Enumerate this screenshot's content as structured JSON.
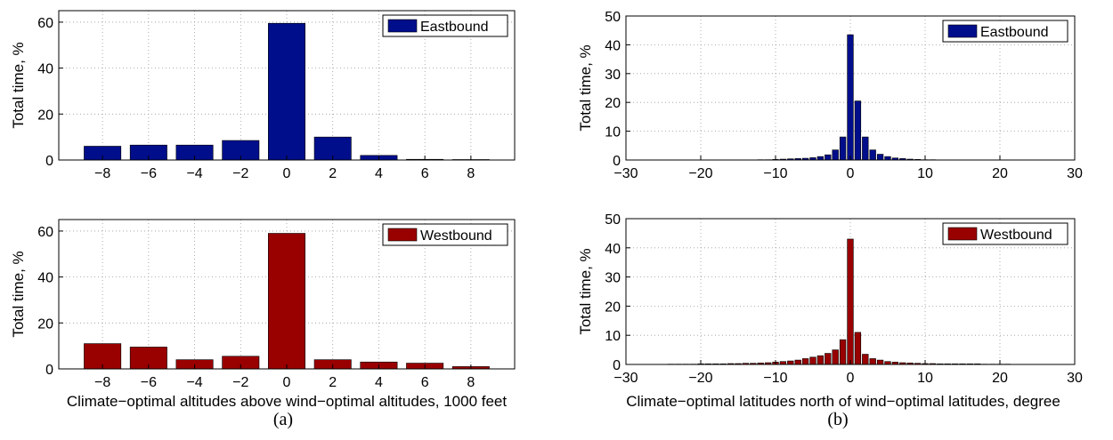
{
  "captions": [
    "(a)",
    "(b)"
  ],
  "chart_data": [
    {
      "type": "bar",
      "panel": "a",
      "x": [
        -8,
        -6,
        -4,
        -2,
        0,
        2,
        4,
        6,
        8
      ],
      "series": [
        {
          "name": "Eastbound",
          "values": [
            6,
            6.5,
            6.5,
            8.5,
            59.5,
            10,
            2,
            0.3,
            0.2
          ]
        }
      ],
      "color": "#000e8c",
      "xlim": [
        -9.9,
        9.9
      ],
      "ylim": [
        0,
        65
      ],
      "xticks": [
        -8,
        -6,
        -4,
        -2,
        0,
        2,
        4,
        6,
        8
      ],
      "yticks": [
        0,
        20,
        40,
        60
      ],
      "ylabel": "Total time, %",
      "xlabel": "",
      "grid": true,
      "legend": "top-right"
    },
    {
      "type": "bar",
      "panel": "a",
      "x": [
        -8,
        -6,
        -4,
        -2,
        0,
        2,
        4,
        6,
        8
      ],
      "series": [
        {
          "name": "Westbound",
          "values": [
            11,
            9.5,
            4,
            5.5,
            59,
            4,
            3,
            2.5,
            1
          ]
        }
      ],
      "color": "#990000",
      "xlim": [
        -9.9,
        9.9
      ],
      "ylim": [
        0,
        65
      ],
      "xticks": [
        -8,
        -6,
        -4,
        -2,
        0,
        2,
        4,
        6,
        8
      ],
      "yticks": [
        0,
        20,
        40,
        60
      ],
      "ylabel": "Total time, %",
      "xlabel": "Climate−optimal altitudes above wind−optimal altitudes, 1000 feet",
      "grid": true,
      "legend": "top-right"
    },
    {
      "type": "bar",
      "panel": "b",
      "x": [
        -24,
        -23,
        -22,
        -21,
        -20,
        -19,
        -18,
        -17,
        -16,
        -15,
        -14,
        -13,
        -12,
        -11,
        -10,
        -9,
        -8,
        -7,
        -6,
        -5,
        -4,
        -3,
        -2,
        -1,
        0,
        1,
        2,
        3,
        4,
        5,
        6,
        7,
        8,
        9,
        10,
        11,
        12,
        13,
        14,
        15,
        16,
        17,
        18,
        19,
        20,
        21
      ],
      "series": [
        {
          "name": "Eastbound",
          "values": [
            0.05,
            0.05,
            0.05,
            0.05,
            0.05,
            0.05,
            0.05,
            0.05,
            0.05,
            0.05,
            0.05,
            0.05,
            0.1,
            0.1,
            0.2,
            0.3,
            0.4,
            0.5,
            0.6,
            0.8,
            1.2,
            1.8,
            3.5,
            8,
            43.5,
            20.5,
            8,
            3.5,
            2,
            1.2,
            0.7,
            0.5,
            0.3,
            0.2,
            0.1,
            0.1,
            0.05,
            0.05,
            0.05,
            0.05,
            0.05,
            0.05,
            0.05,
            0.05,
            0.05,
            0.05
          ]
        }
      ],
      "color": "#000e8c",
      "xlim": [
        -30,
        30
      ],
      "ylim": [
        0,
        50
      ],
      "xticks": [
        -30,
        -20,
        -10,
        0,
        10,
        20,
        30
      ],
      "yticks": [
        0,
        10,
        20,
        30,
        40,
        50
      ],
      "ylabel": "Total time, %",
      "xlabel": "",
      "grid": true,
      "legend": "top-right"
    },
    {
      "type": "bar",
      "panel": "b",
      "x": [
        -24,
        -23,
        -22,
        -21,
        -20,
        -19,
        -18,
        -17,
        -16,
        -15,
        -14,
        -13,
        -12,
        -11,
        -10,
        -9,
        -8,
        -7,
        -6,
        -5,
        -4,
        -3,
        -2,
        -1,
        0,
        1,
        2,
        3,
        4,
        5,
        6,
        7,
        8,
        9,
        10,
        11,
        12,
        13,
        14,
        15,
        16,
        17,
        18,
        19,
        20,
        21
      ],
      "series": [
        {
          "name": "Westbound",
          "values": [
            0.1,
            0.1,
            0.1,
            0.1,
            0.2,
            0.2,
            0.2,
            0.2,
            0.3,
            0.3,
            0.4,
            0.4,
            0.5,
            0.6,
            0.8,
            1,
            1.2,
            1.5,
            2,
            2.5,
            3,
            3.8,
            5,
            8.5,
            43,
            11,
            3.5,
            2,
            1.5,
            1,
            0.8,
            0.6,
            0.5,
            0.4,
            0.3,
            0.3,
            0.2,
            0.2,
            0.2,
            0.2,
            0.2,
            0.2,
            0.1,
            0.1,
            0.1,
            0.1
          ]
        }
      ],
      "color": "#990000",
      "xlim": [
        -30,
        30
      ],
      "ylim": [
        0,
        50
      ],
      "xticks": [
        -30,
        -20,
        -10,
        0,
        10,
        20,
        30
      ],
      "yticks": [
        0,
        10,
        20,
        30,
        40,
        50
      ],
      "ylabel": "Total time, %",
      "xlabel": "Climate−optimal latitudes north of wind−optimal latitudes, degree",
      "grid": true,
      "legend": "top-right"
    }
  ]
}
